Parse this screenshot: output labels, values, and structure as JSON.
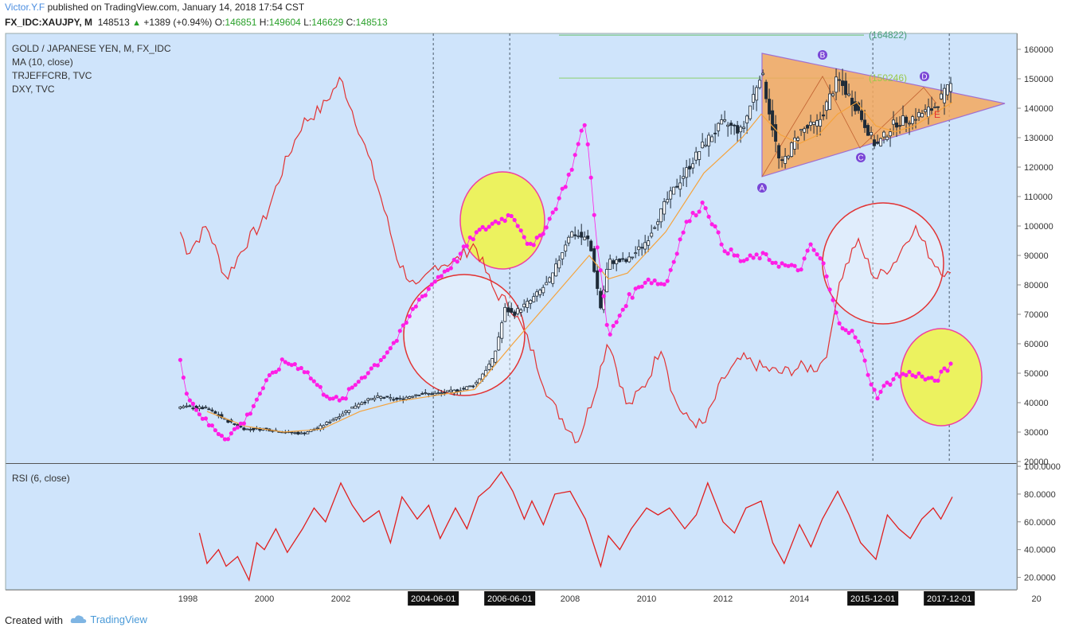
{
  "header": {
    "author": "Victor.Y.F",
    "published": "published on TradingView.com, January 14, 2018 17:54 CST",
    "symbol": "FX_IDC:XAUJPY, M",
    "last": "148513",
    "change": "+1389 (+0.94%)",
    "o_label": "O:",
    "o": "146851",
    "h_label": "H:",
    "h": "149604",
    "l_label": "L:",
    "l": "146629",
    "c_label": "C:",
    "c": "148513"
  },
  "legend": {
    "title": "GOLD / JAPANESE YEN, M, FX_IDC",
    "ma": "MA (10, close)",
    "trjeffcrb": "TRJEFFCRB, TVC",
    "dxy": "DXY, TVC",
    "rsi": "RSI (6, close)"
  },
  "footer": {
    "created_with": "Created with",
    "brand": "TradingView"
  },
  "colors": {
    "bg": "#cfe4fb",
    "candle": "#1e2b38",
    "ma": "#f5a33c",
    "dxy": "#e23232",
    "crb": "#ff1ee6",
    "triangle": "#f5a85c",
    "yellow": "#ecf25f",
    "rsi": "#e01f1f"
  },
  "chart_data": [
    {
      "type": "candlestick",
      "title": "GOLD / JAPANESE YEN, M, FX_IDC",
      "x_tick_labels": [
        "1998",
        "2000",
        "2002",
        "2004-06-01",
        "2006-06-01",
        "2008",
        "2010",
        "2012",
        "2014",
        "2015-12-01",
        "2017-12-01",
        "20"
      ],
      "y_tick_labels": [
        "160000",
        "150000",
        "140000",
        "130000",
        "120000",
        "110000",
        "100000",
        "90000",
        "80000",
        "70000",
        "60000",
        "50000",
        "40000",
        "30000",
        "20000"
      ],
      "ylim": [
        20000,
        162000
      ],
      "price_labels": [
        "(164822)",
        "(150246)"
      ],
      "pattern_points": [
        "A",
        "B",
        "C",
        "D",
        "E"
      ],
      "series": [
        {
          "name": "XAUJPY (approx close)",
          "points": [
            [
              1998.0,
              38500
            ],
            [
              1998.5,
              38000
            ],
            [
              1999.0,
              34000
            ],
            [
              1999.5,
              31000
            ],
            [
              2000.0,
              31000
            ],
            [
              2000.5,
              30000
            ],
            [
              2001.0,
              29500
            ],
            [
              2001.5,
              32000
            ],
            [
              2002.0,
              36000
            ],
            [
              2002.5,
              40000
            ],
            [
              2003.0,
              42000
            ],
            [
              2003.5,
              41000
            ],
            [
              2004.0,
              43000
            ],
            [
              2004.5,
              43000
            ],
            [
              2005.0,
              44000
            ],
            [
              2005.5,
              46000
            ],
            [
              2006.0,
              55000
            ],
            [
              2006.3,
              72000
            ],
            [
              2006.5,
              70000
            ],
            [
              2007.0,
              75000
            ],
            [
              2007.5,
              82000
            ],
            [
              2008.0,
              98000
            ],
            [
              2008.5,
              95000
            ],
            [
              2008.8,
              72000
            ],
            [
              2009.0,
              88000
            ],
            [
              2009.5,
              88000
            ],
            [
              2010.0,
              95000
            ],
            [
              2010.5,
              108000
            ],
            [
              2011.0,
              118000
            ],
            [
              2011.5,
              128000
            ],
            [
              2012.0,
              135000
            ],
            [
              2012.5,
              132000
            ],
            [
              2013.0,
              153000
            ],
            [
              2013.5,
              120000
            ],
            [
              2014.0,
              132000
            ],
            [
              2014.5,
              135000
            ],
            [
              2015.0,
              150000
            ],
            [
              2015.5,
              140000
            ],
            [
              2016.0,
              127000
            ],
            [
              2016.5,
              135000
            ],
            [
              2017.0,
              137000
            ],
            [
              2017.5,
              140000
            ],
            [
              2018.0,
              148513
            ]
          ]
        },
        {
          "name": "MA (10, close)",
          "points": [
            [
              1998.5,
              37000
            ],
            [
              1999.5,
              32000
            ],
            [
              2000.5,
              30000
            ],
            [
              2001.5,
              31000
            ],
            [
              2002.5,
              37000
            ],
            [
              2003.5,
              40500
            ],
            [
              2004.5,
              42500
            ],
            [
              2005.5,
              44500
            ],
            [
              2006.5,
              60000
            ],
            [
              2007.5,
              75000
            ],
            [
              2008.5,
              90000
            ],
            [
              2009.0,
              82000
            ],
            [
              2009.5,
              84000
            ],
            [
              2010.5,
              98000
            ],
            [
              2011.5,
              118000
            ],
            [
              2012.5,
              130000
            ],
            [
              2013.0,
              138000
            ],
            [
              2013.5,
              131000
            ],
            [
              2014.0,
              128000
            ],
            [
              2014.5,
              131000
            ],
            [
              2015.0,
              138000
            ],
            [
              2015.5,
              142000
            ],
            [
              2016.0,
              134000
            ],
            [
              2016.5,
              132000
            ],
            [
              2017.0,
              134000
            ],
            [
              2017.5,
              138000
            ],
            [
              2018.0,
              142000
            ]
          ]
        },
        {
          "name": "DXY, TVC (overlay)",
          "points": [
            [
              1997.8,
              98000
            ],
            [
              1998.0,
              91000
            ],
            [
              1998.5,
              100000
            ],
            [
              1999.0,
              82000
            ],
            [
              1999.5,
              94000
            ],
            [
              2000.0,
              102000
            ],
            [
              2000.5,
              120000
            ],
            [
              2001.0,
              135000
            ],
            [
              2001.5,
              140000
            ],
            [
              2002.0,
              150000
            ],
            [
              2002.5,
              132000
            ],
            [
              2003.0,
              112000
            ],
            [
              2003.5,
              88000
            ],
            [
              2004.0,
              78000
            ],
            [
              2004.5,
              87000
            ],
            [
              2005.0,
              88000
            ],
            [
              2005.5,
              94000
            ],
            [
              2006.0,
              78000
            ],
            [
              2006.5,
              72000
            ],
            [
              2007.0,
              58000
            ],
            [
              2007.5,
              40000
            ],
            [
              2008.2,
              27000
            ],
            [
              2008.6,
              42000
            ],
            [
              2009.0,
              62000
            ],
            [
              2009.5,
              38000
            ],
            [
              2010.0,
              47000
            ],
            [
              2010.4,
              60000
            ],
            [
              2010.7,
              42000
            ],
            [
              2011.0,
              35000
            ],
            [
              2011.5,
              32000
            ],
            [
              2012.0,
              48000
            ],
            [
              2012.5,
              55000
            ],
            [
              2013.0,
              52000
            ],
            [
              2013.5,
              50000
            ],
            [
              2014.0,
              52000
            ],
            [
              2014.5,
              52000
            ],
            [
              2014.8,
              60000
            ],
            [
              2015.0,
              80000
            ],
            [
              2015.5,
              95000
            ],
            [
              2016.0,
              82000
            ],
            [
              2016.5,
              88000
            ],
            [
              2017.0,
              100000
            ],
            [
              2017.5,
              88000
            ],
            [
              2018.0,
              82000
            ]
          ]
        },
        {
          "name": "TRJEFFCRB, TVC (overlay)",
          "points": [
            [
              1997.8,
              55000
            ],
            [
              1998.0,
              42000
            ],
            [
              1998.5,
              33000
            ],
            [
              1999.0,
              28000
            ],
            [
              1999.5,
              34000
            ],
            [
              2000.0,
              46000
            ],
            [
              2000.5,
              54000
            ],
            [
              2001.0,
              52000
            ],
            [
              2001.5,
              44000
            ],
            [
              2002.0,
              40000
            ],
            [
              2002.5,
              48000
            ],
            [
              2003.0,
              54000
            ],
            [
              2003.5,
              62000
            ],
            [
              2004.0,
              74000
            ],
            [
              2004.5,
              82000
            ],
            [
              2005.0,
              88000
            ],
            [
              2005.5,
              97000
            ],
            [
              2006.0,
              101000
            ],
            [
              2006.5,
              104000
            ],
            [
              2007.0,
              92000
            ],
            [
              2007.5,
              103000
            ],
            [
              2008.0,
              118000
            ],
            [
              2008.4,
              136000
            ],
            [
              2008.7,
              95000
            ],
            [
              2009.0,
              62000
            ],
            [
              2009.5,
              75000
            ],
            [
              2010.0,
              82000
            ],
            [
              2010.5,
              80000
            ],
            [
              2011.0,
              100000
            ],
            [
              2011.5,
              108000
            ],
            [
              2012.0,
              93000
            ],
            [
              2012.5,
              88000
            ],
            [
              2013.0,
              90000
            ],
            [
              2013.5,
              87000
            ],
            [
              2014.0,
              85000
            ],
            [
              2014.3,
              93000
            ],
            [
              2014.6,
              88000
            ],
            [
              2015.0,
              68000
            ],
            [
              2015.5,
              62000
            ],
            [
              2016.0,
              42000
            ],
            [
              2016.5,
              49000
            ],
            [
              2017.0,
              50000
            ],
            [
              2017.5,
              47000
            ],
            [
              2018.0,
              53000
            ]
          ]
        }
      ]
    },
    {
      "type": "line",
      "title": "RSI (6, close)",
      "y_tick_labels": [
        "100.0000",
        "80.0000",
        "60.0000",
        "40.0000",
        "20.0000"
      ],
      "ylim": [
        8,
        102
      ],
      "series": [
        {
          "name": "RSI (6, close)",
          "points": [
            [
              1998.3,
              52
            ],
            [
              1998.5,
              30
            ],
            [
              1998.8,
              40
            ],
            [
              1999.0,
              28
            ],
            [
              1999.3,
              35
            ],
            [
              1999.6,
              18
            ],
            [
              1999.8,
              45
            ],
            [
              2000.0,
              40
            ],
            [
              2000.3,
              55
            ],
            [
              2000.6,
              38
            ],
            [
              2001.0,
              55
            ],
            [
              2001.3,
              70
            ],
            [
              2001.6,
              60
            ],
            [
              2002.0,
              88
            ],
            [
              2002.3,
              72
            ],
            [
              2002.6,
              60
            ],
            [
              2003.0,
              68
            ],
            [
              2003.3,
              45
            ],
            [
              2003.6,
              78
            ],
            [
              2004.0,
              62
            ],
            [
              2004.3,
              72
            ],
            [
              2004.6,
              48
            ],
            [
              2005.0,
              70
            ],
            [
              2005.3,
              55
            ],
            [
              2005.6,
              78
            ],
            [
              2005.9,
              85
            ],
            [
              2006.2,
              96
            ],
            [
              2006.5,
              82
            ],
            [
              2006.8,
              62
            ],
            [
              2007.0,
              75
            ],
            [
              2007.3,
              58
            ],
            [
              2007.6,
              80
            ],
            [
              2008.0,
              82
            ],
            [
              2008.4,
              62
            ],
            [
              2008.8,
              28
            ],
            [
              2009.0,
              50
            ],
            [
              2009.3,
              40
            ],
            [
              2009.6,
              55
            ],
            [
              2010.0,
              70
            ],
            [
              2010.3,
              65
            ],
            [
              2010.6,
              70
            ],
            [
              2011.0,
              55
            ],
            [
              2011.3,
              65
            ],
            [
              2011.6,
              88
            ],
            [
              2012.0,
              60
            ],
            [
              2012.3,
              52
            ],
            [
              2012.6,
              70
            ],
            [
              2013.0,
              75
            ],
            [
              2013.3,
              45
            ],
            [
              2013.6,
              30
            ],
            [
              2014.0,
              58
            ],
            [
              2014.3,
              42
            ],
            [
              2014.6,
              62
            ],
            [
              2015.0,
              82
            ],
            [
              2015.3,
              65
            ],
            [
              2015.6,
              45
            ],
            [
              2016.0,
              33
            ],
            [
              2016.3,
              65
            ],
            [
              2016.6,
              55
            ],
            [
              2016.9,
              48
            ],
            [
              2017.2,
              62
            ],
            [
              2017.5,
              70
            ],
            [
              2017.7,
              62
            ],
            [
              2018.0,
              78
            ]
          ]
        }
      ]
    }
  ]
}
